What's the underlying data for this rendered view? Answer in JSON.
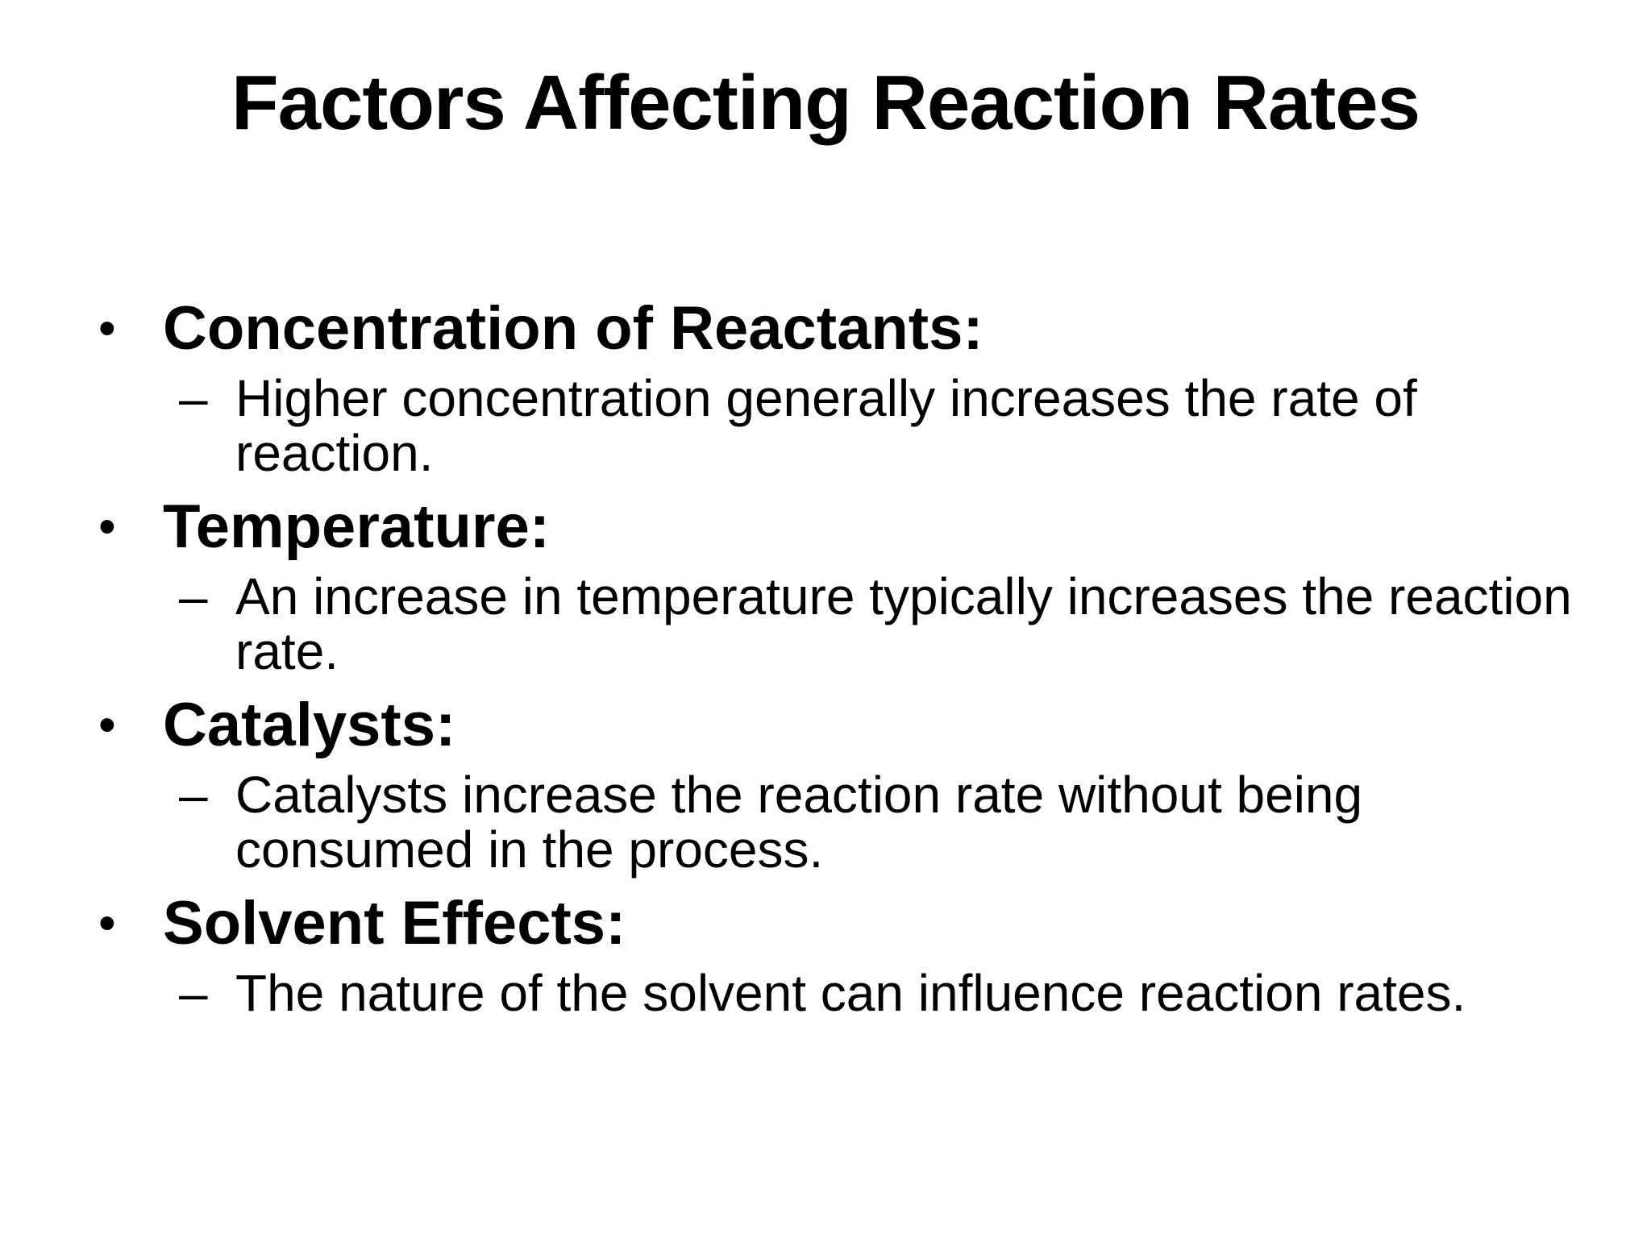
{
  "slide": {
    "title": "Factors Affecting Reaction Rates",
    "bullet_symbol": "•",
    "sub_bullet_symbol": "–",
    "items": [
      {
        "heading": "Concentration of Reactants:",
        "detail": "Higher concentration generally increases the rate of reaction."
      },
      {
        "heading": "Temperature:",
        "detail": "An increase in temperature typically increases the reaction rate."
      },
      {
        "heading": "Catalysts:",
        "detail": "Catalysts increase the reaction rate without being consumed in the process."
      },
      {
        "heading": "Solvent Effects:",
        "detail": "The nature of the solvent can influence reaction rates."
      }
    ]
  }
}
